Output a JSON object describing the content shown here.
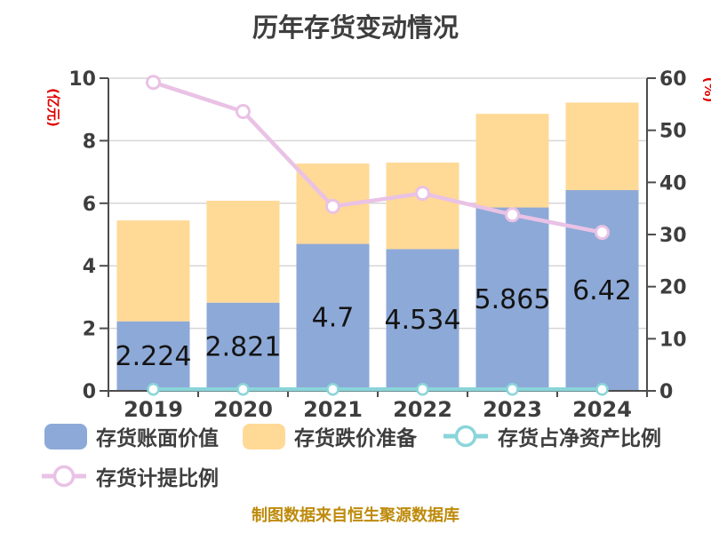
{
  "title": "历年存货变动情况",
  "footer": "制图数据来自恒生聚源数据库",
  "axes": {
    "left_unit": "(亿元)",
    "right_unit": "(%)"
  },
  "legend": {
    "items": [
      {
        "label": "存货账面价值",
        "type": "bar",
        "color": "#8DA9D7"
      },
      {
        "label": "存货跌价准备",
        "type": "bar",
        "color": "#FFD996"
      },
      {
        "label": "存货占净资产比例",
        "type": "line",
        "color": "#8AD5DA"
      },
      {
        "label": "存货计提比例",
        "type": "line",
        "color": "#E9C2E5"
      }
    ]
  },
  "chart_data": {
    "type": "bar",
    "title": "历年存货变动情况",
    "categories": [
      "2019",
      "2020",
      "2021",
      "2022",
      "2023",
      "2024"
    ],
    "series": [
      {
        "name": "存货账面价值",
        "kind": "bar",
        "stack": "inventory",
        "axis": "left",
        "color": "#8DA9D7",
        "values": [
          2.224,
          2.821,
          4.7,
          4.534,
          5.865,
          6.42
        ],
        "value_labels": [
          "2.224",
          "2.821",
          "4.7",
          "4.534",
          "5.865",
          "6.42"
        ]
      },
      {
        "name": "存货跌价准备",
        "kind": "bar",
        "stack": "inventory",
        "axis": "left",
        "color": "#FFD996",
        "values": [
          3.226,
          3.259,
          2.57,
          2.766,
          2.995,
          2.8
        ]
      },
      {
        "name": "存货占净资产比例",
        "kind": "line",
        "marker": "circle",
        "axis": "right",
        "color": "#8AD5DA",
        "values": [
          0.3,
          0.3,
          0.3,
          0.3,
          0.3,
          0.3
        ]
      },
      {
        "name": "存货计提比例",
        "kind": "line",
        "marker": "circle",
        "axis": "right",
        "color": "#E9C2E5",
        "values": [
          59.2,
          53.6,
          35.4,
          37.9,
          33.8,
          30.4
        ]
      }
    ],
    "left_axis": {
      "label": "(亿元)",
      "min": 0,
      "max": 10,
      "step": 2,
      "ticks": [
        0,
        2,
        4,
        6,
        8,
        10
      ]
    },
    "right_axis": {
      "label": "(%)",
      "min": 0,
      "max": 60,
      "step": 10,
      "ticks": [
        0,
        10,
        20,
        30,
        40,
        50,
        60
      ]
    },
    "grid": true,
    "legend_position": "bottom"
  },
  "palette": {
    "axis_line": "#4D4D4D",
    "grid_line": "#D6D6D6",
    "tick_text": "#3E3E3E",
    "title_text": "#3E3E3E",
    "unit_text": "#E00000",
    "footer_text": "#BE8A0B",
    "value_label_text": "#141414",
    "marker_fill": "#FFFFFF",
    "background": "#FFFFFF"
  }
}
